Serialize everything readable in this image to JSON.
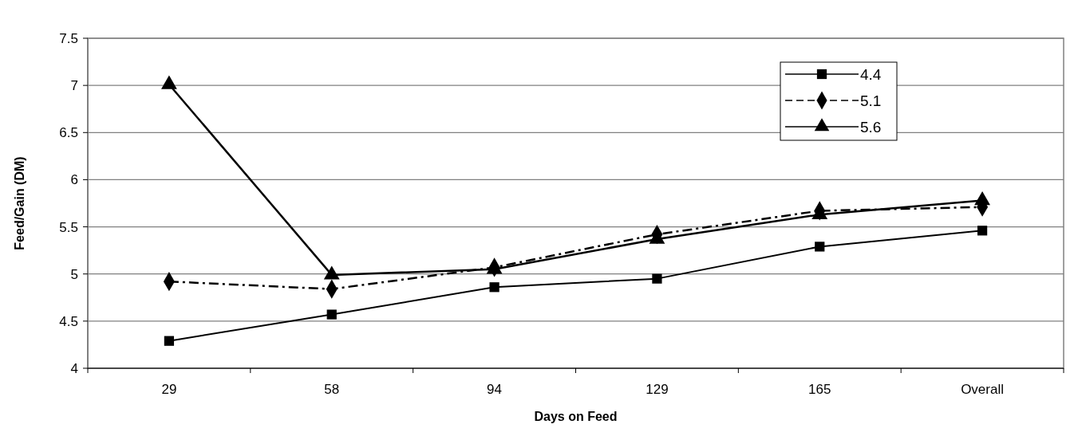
{
  "chart_data": {
    "type": "line",
    "xlabel": "Days on Feed",
    "ylabel": "Feed/Gain (DM)",
    "categories": [
      "29",
      "58",
      "94",
      "129",
      "165",
      "Overall"
    ],
    "series": [
      {
        "name": "4.4",
        "color": "#000000",
        "marker": "square",
        "line_style": "solid",
        "values": [
          4.29,
          4.57,
          4.86,
          4.95,
          5.29,
          5.46
        ]
      },
      {
        "name": "5.1",
        "color": "#000000",
        "marker": "diamond",
        "line_style": "dashed",
        "values": [
          4.92,
          4.84,
          5.07,
          5.42,
          5.67,
          5.71
        ]
      },
      {
        "name": "5.6",
        "color": "#000000",
        "marker": "triangle",
        "line_style": "solid",
        "values": [
          7.01,
          4.99,
          5.05,
          5.37,
          5.63,
          5.78
        ]
      }
    ],
    "ylim": [
      4,
      7.5
    ],
    "yticks": [
      4,
      4.5,
      5,
      5.5,
      6,
      6.5,
      7,
      7.5
    ],
    "grid": "y",
    "legend": "top right"
  }
}
